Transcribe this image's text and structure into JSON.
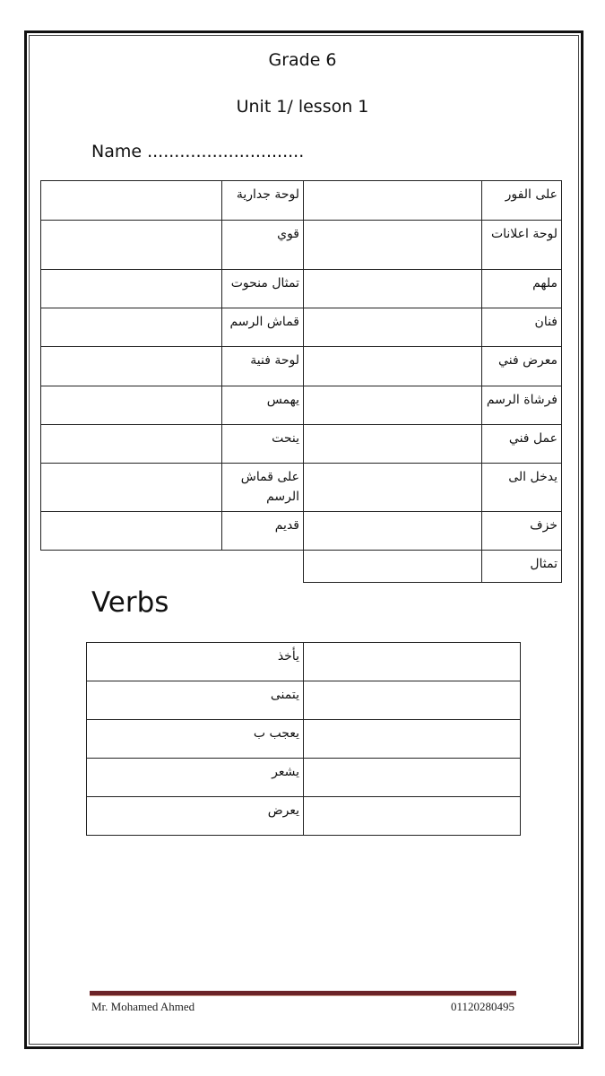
{
  "header": {
    "grade": "Grade 6",
    "unit": "Unit 1/ lesson 1",
    "name_label": "Name ............................."
  },
  "vocab": {
    "rows": [
      {
        "right": "على الفور",
        "mid": "لوحة جدارية"
      },
      {
        "right": "لوحة اعلانات",
        "mid": "قوي"
      },
      {
        "right": "ملهم",
        "mid": "تمثال منحوت"
      },
      {
        "right": "فنان",
        "mid": "قماش الرسم"
      },
      {
        "right": "معرض فني",
        "mid": "لوحة فنية"
      },
      {
        "right": "فرشاة الرسم",
        "mid": "يهمس"
      },
      {
        "right": "عمل فني",
        "mid": "ينحت"
      },
      {
        "right": "يدخل الى",
        "mid": "على قماش الرسم"
      },
      {
        "right": "خزف",
        "mid": "قديم"
      },
      {
        "right": "تمثال"
      }
    ]
  },
  "verbs": {
    "title": "Verbs",
    "rows": [
      "يأخذ",
      "يتمنى",
      "يعجب ب",
      "يشعر",
      "يعرض"
    ]
  },
  "footer": {
    "author": "Mr. Mohamed Ahmed",
    "phone": "01120280495"
  },
  "colors": {
    "footer_rule": "#6b2328"
  }
}
